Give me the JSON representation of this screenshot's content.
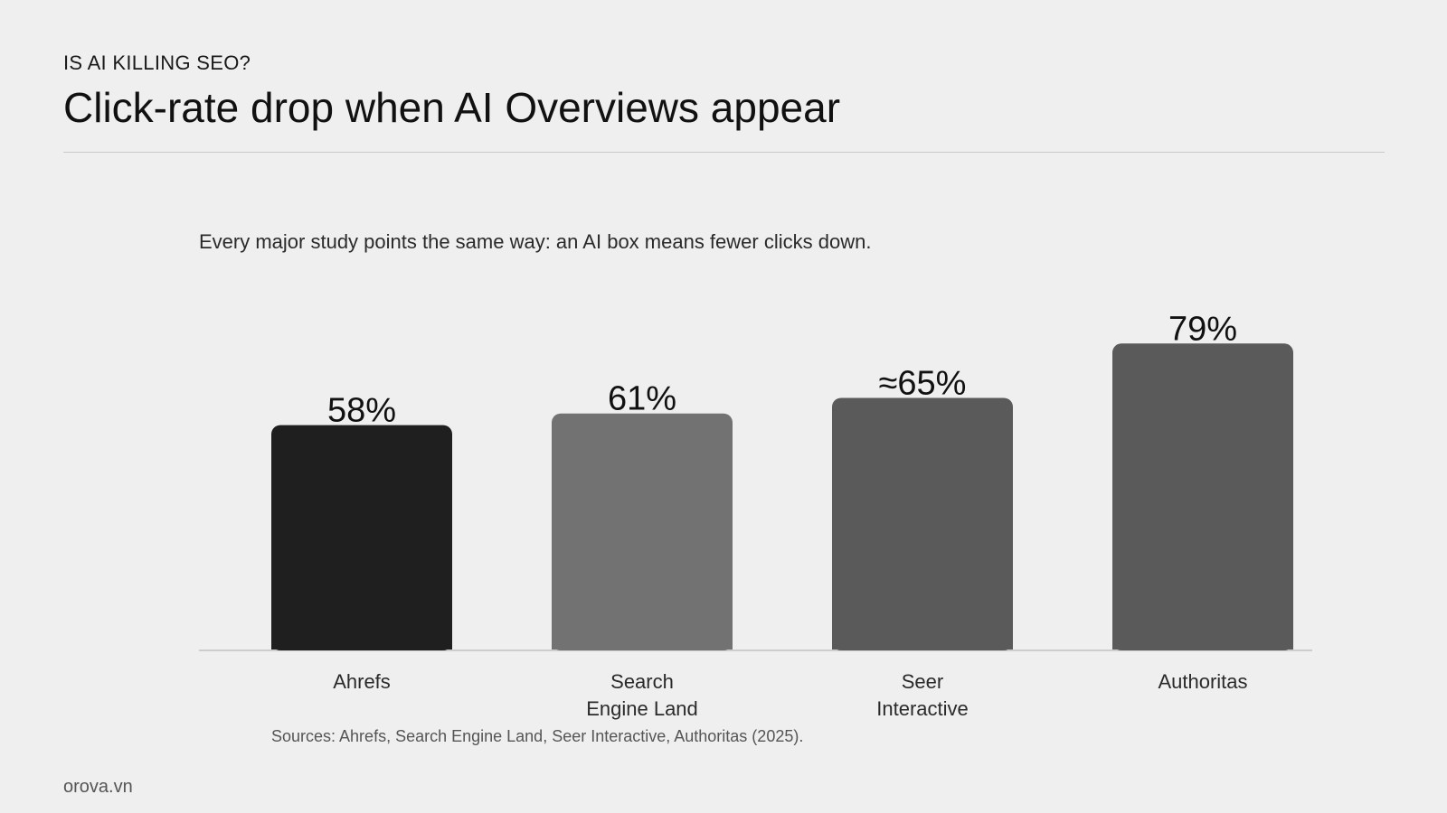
{
  "header": {
    "kicker": "IS AI KILLING SEO?",
    "title": "Click-rate drop when AI Overviews appear"
  },
  "subtitle": "Every major study points the same way: an AI box means fewer clicks down.",
  "chart_data": {
    "type": "bar",
    "categories": [
      [
        "Ahrefs"
      ],
      [
        "Search",
        "Engine Land"
      ],
      [
        "Seer",
        "Interactive"
      ],
      [
        "Authoritas"
      ]
    ],
    "values": [
      58,
      61,
      65,
      79
    ],
    "value_labels": [
      "58%",
      "61%",
      "≈65%",
      "79%"
    ],
    "colors": [
      "#1f1f1f",
      "#727272",
      "#5a5a5a",
      "#5a5a5a"
    ],
    "ylim": [
      0,
      100
    ],
    "grid": false,
    "legend": "none"
  },
  "sources": "Sources: Ahrefs, Search Engine Land, Seer Interactive, Authoritas (2025).",
  "footer": {
    "brand": "orova.vn"
  }
}
